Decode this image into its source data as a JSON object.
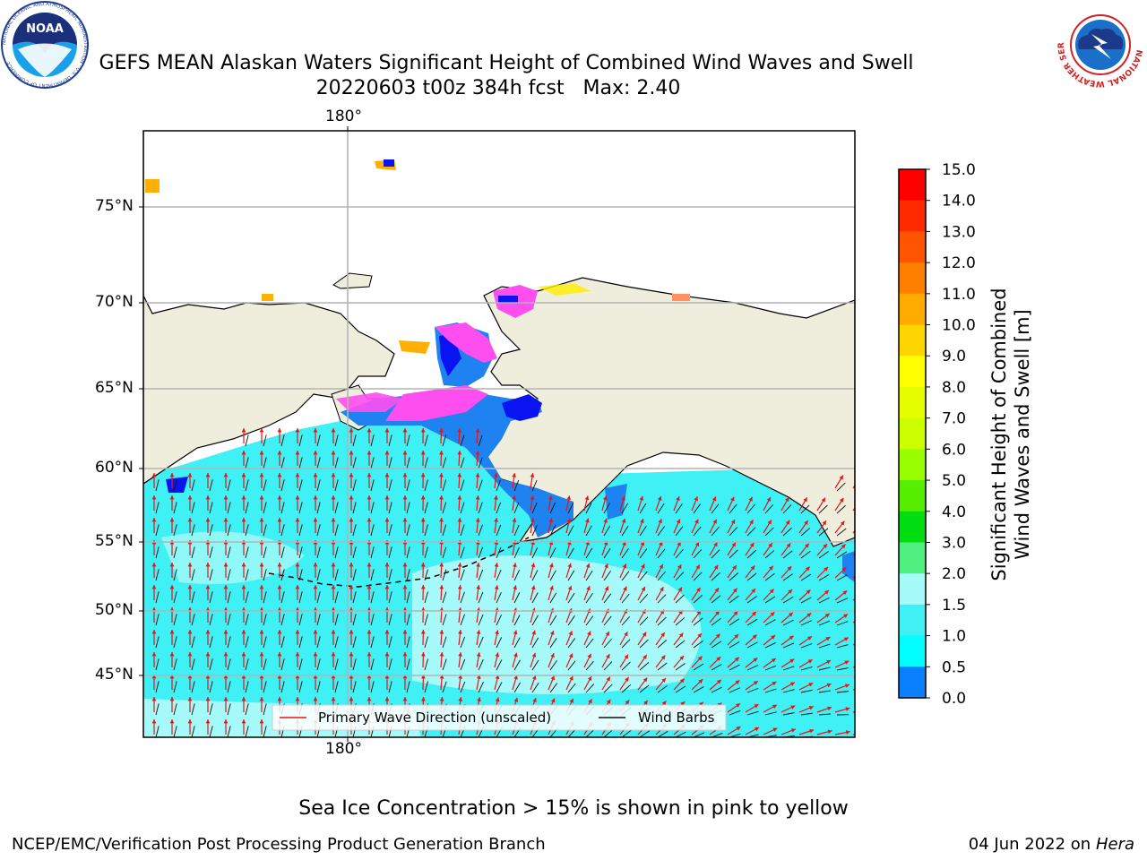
{
  "title": {
    "line1": "GEFS MEAN Alaskan Waters Significant Height of Combined Wind Waves and Swell",
    "line2": "20220603 t00z 384h fcst   Max: 2.40"
  },
  "logos": {
    "noaa": {
      "text": "NOAA",
      "ring_text": "NATIONAL OCEANIC AND ATMOSPHERIC ADMINISTRATION · U.S. DEPARTMENT OF COMMERCE"
    },
    "nws": {
      "ring_text": "NATIONAL WEATHER SERVICE"
    }
  },
  "map": {
    "lon_labels": [
      "180°"
    ],
    "lat_labels": [
      "75°N",
      "70°N",
      "65°N",
      "60°N",
      "55°N",
      "50°N",
      "45°N"
    ],
    "colors": {
      "land": "#efeedc",
      "ocean_low": "#3ff0f5",
      "ocean_mid": "#a6faf9",
      "coastal": "#1e82f0",
      "deep_blue": "#0a14f0",
      "ice_pink": "#ff4ef0",
      "ice_orange": "#ffb000",
      "ice_yellow": "#ffee00",
      "grid": "#b4b4b4",
      "wave_arrow": "#ee1111",
      "wind_barb": "#111111"
    }
  },
  "legend": {
    "wave_label": "Primary Wave Direction (unscaled)",
    "wind_label": "Wind Barbs"
  },
  "colorbar": {
    "title_line1": "Significant Height of Combined",
    "title_line2": "Wind Waves and Swell [m]",
    "ticks": [
      "15.0",
      "14.0",
      "13.0",
      "12.0",
      "11.0",
      "10.0",
      "9.0",
      "8.0",
      "7.0",
      "6.0",
      "5.0",
      "4.0",
      "3.0",
      "2.0",
      "1.5",
      "1.0",
      "0.5",
      "0.0"
    ],
    "colors": [
      "#ff0000",
      "#ff2a00",
      "#ff5500",
      "#ff8000",
      "#ffab00",
      "#ffd500",
      "#ffff00",
      "#e6ff00",
      "#ccff00",
      "#99ff00",
      "#55ee00",
      "#00dd11",
      "#50f080",
      "#a6faf9",
      "#3ff0f5",
      "#00ffff",
      "#0a80ff",
      "#0000ff"
    ]
  },
  "footer": {
    "note": "Sea Ice Concentration > 15% is shown in pink to yellow",
    "left": "NCEP/EMC/Verification Post Processing Product Generation Branch",
    "right_date": "04 Jun 2022 on",
    "right_host": "Hera"
  }
}
